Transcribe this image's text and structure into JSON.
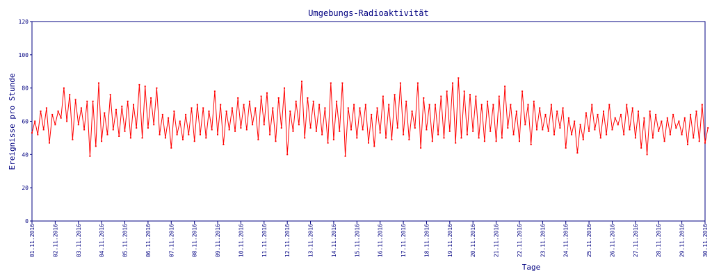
{
  "chart_data": {
    "type": "line",
    "title": "Umgebungs-Radioaktivität",
    "xlabel": "Tage",
    "ylabel": "Ereignisse pro Stunde",
    "ylim": [
      0,
      120
    ],
    "yticks": [
      0,
      20,
      40,
      60,
      80,
      100,
      120
    ],
    "xlim": [
      "01.11.2016",
      "30.11.2016"
    ],
    "xticks": [
      "01.11.2016",
      "02.11.2016",
      "03.11.2016",
      "04.11.2016",
      "05.11.2016",
      "06.11.2016",
      "07.11.2016",
      "08.11.2016",
      "09.11.2016",
      "10.11.2016",
      "11.11.2016",
      "12.11.2016",
      "13.11.2016",
      "14.11.2016",
      "15.11.2016",
      "16.11.2016",
      "17.11.2016",
      "18.11.2016",
      "19.11.2016",
      "20.11.2016",
      "21.11.2016",
      "22.11.2016",
      "23.11.2016",
      "24.11.2016",
      "25.11.2016",
      "26.11.2016",
      "27.11.2016",
      "28.11.2016",
      "29.11.2016",
      "30.11.2016"
    ],
    "grid": false,
    "series": [
      {
        "color": "#ff0000",
        "points": [
          [
            "01.11.2016 00:00",
            53
          ],
          [
            "01.11.2016 03:00",
            60
          ],
          [
            "01.11.2016 06:00",
            52
          ],
          [
            "01.11.2016 09:00",
            66
          ],
          [
            "01.11.2016 12:00",
            55
          ],
          [
            "01.11.2016 15:00",
            68
          ],
          [
            "01.11.2016 18:00",
            47
          ],
          [
            "01.11.2016 21:00",
            64
          ],
          [
            "02.11.2016 00:00",
            58
          ],
          [
            "02.11.2016 03:00",
            66
          ],
          [
            "02.11.2016 06:00",
            62
          ],
          [
            "02.11.2016 09:00",
            80
          ],
          [
            "02.11.2016 12:00",
            60
          ],
          [
            "02.11.2016 15:00",
            76
          ],
          [
            "02.11.2016 18:00",
            49
          ],
          [
            "02.11.2016 21:00",
            73
          ],
          [
            "03.11.2016 00:00",
            58
          ],
          [
            "03.11.2016 03:00",
            68
          ],
          [
            "03.11.2016 06:00",
            55
          ],
          [
            "03.11.2016 09:00",
            72
          ],
          [
            "03.11.2016 12:00",
            39
          ],
          [
            "03.11.2016 15:00",
            72
          ],
          [
            "03.11.2016 18:00",
            45
          ],
          [
            "03.11.2016 21:00",
            83
          ],
          [
            "04.11.2016 00:00",
            48
          ],
          [
            "04.11.2016 03:00",
            65
          ],
          [
            "04.11.2016 06:00",
            52
          ],
          [
            "04.11.2016 09:00",
            76
          ],
          [
            "04.11.2016 12:00",
            55
          ],
          [
            "04.11.2016 15:00",
            67
          ],
          [
            "04.11.2016 18:00",
            51
          ],
          [
            "04.11.2016 21:00",
            69
          ],
          [
            "05.11.2016 00:00",
            54
          ],
          [
            "05.11.2016 03:00",
            72
          ],
          [
            "05.11.2016 06:00",
            50
          ],
          [
            "05.11.2016 09:00",
            70
          ],
          [
            "05.11.2016 12:00",
            56
          ],
          [
            "05.11.2016 15:00",
            82
          ],
          [
            "05.11.2016 18:00",
            50
          ],
          [
            "05.11.2016 21:00",
            81
          ],
          [
            "06.11.2016 00:00",
            56
          ],
          [
            "06.11.2016 03:00",
            74
          ],
          [
            "06.11.2016 06:00",
            58
          ],
          [
            "06.11.2016 09:00",
            80
          ],
          [
            "06.11.2016 12:00",
            52
          ],
          [
            "06.11.2016 15:00",
            64
          ],
          [
            "06.11.2016 18:00",
            50
          ],
          [
            "06.11.2016 21:00",
            62
          ],
          [
            "07.11.2016 00:00",
            44
          ],
          [
            "07.11.2016 03:00",
            66
          ],
          [
            "07.11.2016 06:00",
            52
          ],
          [
            "07.11.2016 09:00",
            60
          ],
          [
            "07.11.2016 12:00",
            49
          ],
          [
            "07.11.2016 15:00",
            64
          ],
          [
            "07.11.2016 18:00",
            52
          ],
          [
            "07.11.2016 21:00",
            68
          ],
          [
            "08.11.2016 00:00",
            48
          ],
          [
            "08.11.2016 03:00",
            70
          ],
          [
            "08.11.2016 06:00",
            52
          ],
          [
            "08.11.2016 09:00",
            68
          ],
          [
            "08.11.2016 12:00",
            50
          ],
          [
            "08.11.2016 15:00",
            66
          ],
          [
            "08.11.2016 18:00",
            55
          ],
          [
            "08.11.2016 21:00",
            78
          ],
          [
            "09.11.2016 00:00",
            52
          ],
          [
            "09.11.2016 03:00",
            70
          ],
          [
            "09.11.2016 06:00",
            46
          ],
          [
            "09.11.2016 09:00",
            66
          ],
          [
            "09.11.2016 12:00",
            55
          ],
          [
            "09.11.2016 15:00",
            68
          ],
          [
            "09.11.2016 18:00",
            54
          ],
          [
            "09.11.2016 21:00",
            74
          ],
          [
            "10.11.2016 00:00",
            56
          ],
          [
            "10.11.2016 03:00",
            70
          ],
          [
            "10.11.2016 06:00",
            55
          ],
          [
            "10.11.2016 09:00",
            72
          ],
          [
            "10.11.2016 12:00",
            58
          ],
          [
            "10.11.2016 15:00",
            68
          ],
          [
            "10.11.2016 18:00",
            49
          ],
          [
            "10.11.2016 21:00",
            75
          ],
          [
            "11.11.2016 00:00",
            58
          ],
          [
            "11.11.2016 03:00",
            77
          ],
          [
            "11.11.2016 06:00",
            52
          ],
          [
            "11.11.2016 09:00",
            68
          ],
          [
            "11.11.2016 12:00",
            48
          ],
          [
            "11.11.2016 15:00",
            74
          ],
          [
            "11.11.2016 18:00",
            56
          ],
          [
            "11.11.2016 21:00",
            80
          ],
          [
            "12.11.2016 00:00",
            40
          ],
          [
            "12.11.2016 03:00",
            66
          ],
          [
            "12.11.2016 06:00",
            54
          ],
          [
            "12.11.2016 09:00",
            72
          ],
          [
            "12.11.2016 12:00",
            58
          ],
          [
            "12.11.2016 15:00",
            84
          ],
          [
            "12.11.2016 18:00",
            50
          ],
          [
            "12.11.2016 21:00",
            74
          ],
          [
            "13.11.2016 00:00",
            56
          ],
          [
            "13.11.2016 03:00",
            72
          ],
          [
            "13.11.2016 06:00",
            54
          ],
          [
            "13.11.2016 09:00",
            70
          ],
          [
            "13.11.2016 12:00",
            52
          ],
          [
            "13.11.2016 15:00",
            68
          ],
          [
            "13.11.2016 18:00",
            47
          ],
          [
            "13.11.2016 21:00",
            83
          ],
          [
            "14.11.2016 00:00",
            49
          ],
          [
            "14.11.2016 03:00",
            72
          ],
          [
            "14.11.2016 06:00",
            54
          ],
          [
            "14.11.2016 09:00",
            83
          ],
          [
            "14.11.2016 12:00",
            39
          ],
          [
            "14.11.2016 15:00",
            68
          ],
          [
            "14.11.2016 18:00",
            55
          ],
          [
            "14.11.2016 21:00",
            70
          ],
          [
            "15.11.2016 00:00",
            50
          ],
          [
            "15.11.2016 03:00",
            68
          ],
          [
            "15.11.2016 06:00",
            55
          ],
          [
            "15.11.2016 09:00",
            70
          ],
          [
            "15.11.2016 12:00",
            47
          ],
          [
            "15.11.2016 15:00",
            64
          ],
          [
            "15.11.2016 18:00",
            45
          ],
          [
            "15.11.2016 21:00",
            68
          ],
          [
            "16.11.2016 00:00",
            53
          ],
          [
            "16.11.2016 03:00",
            75
          ],
          [
            "16.11.2016 06:00",
            50
          ],
          [
            "16.11.2016 09:00",
            70
          ],
          [
            "16.11.2016 12:00",
            49
          ],
          [
            "16.11.2016 15:00",
            76
          ],
          [
            "16.11.2016 18:00",
            56
          ],
          [
            "16.11.2016 21:00",
            83
          ],
          [
            "17.11.2016 00:00",
            52
          ],
          [
            "17.11.2016 03:00",
            72
          ],
          [
            "17.11.2016 06:00",
            49
          ],
          [
            "17.11.2016 09:00",
            66
          ],
          [
            "17.11.2016 12:00",
            56
          ],
          [
            "17.11.2016 15:00",
            83
          ],
          [
            "17.11.2016 18:00",
            44
          ],
          [
            "17.11.2016 21:00",
            74
          ],
          [
            "18.11.2016 00:00",
            55
          ],
          [
            "18.11.2016 03:00",
            70
          ],
          [
            "18.11.2016 06:00",
            48
          ],
          [
            "18.11.2016 09:00",
            70
          ],
          [
            "18.11.2016 12:00",
            52
          ],
          [
            "18.11.2016 15:00",
            75
          ],
          [
            "18.11.2016 18:00",
            50
          ],
          [
            "18.11.2016 21:00",
            78
          ],
          [
            "19.11.2016 00:00",
            54
          ],
          [
            "19.11.2016 03:00",
            83
          ],
          [
            "19.11.2016 06:00",
            47
          ],
          [
            "19.11.2016 09:00",
            86
          ],
          [
            "19.11.2016 12:00",
            50
          ],
          [
            "19.11.2016 15:00",
            78
          ],
          [
            "19.11.2016 18:00",
            52
          ],
          [
            "19.11.2016 21:00",
            76
          ],
          [
            "20.11.2016 00:00",
            54
          ],
          [
            "20.11.2016 03:00",
            75
          ],
          [
            "20.11.2016 06:00",
            50
          ],
          [
            "20.11.2016 09:00",
            70
          ],
          [
            "20.11.2016 12:00",
            48
          ],
          [
            "20.11.2016 15:00",
            72
          ],
          [
            "20.11.2016 18:00",
            54
          ],
          [
            "20.11.2016 21:00",
            70
          ],
          [
            "21.11.2016 00:00",
            48
          ],
          [
            "21.11.2016 03:00",
            75
          ],
          [
            "21.11.2016 06:00",
            50
          ],
          [
            "21.11.2016 09:00",
            81
          ],
          [
            "21.11.2016 12:00",
            56
          ],
          [
            "21.11.2016 15:00",
            70
          ],
          [
            "21.11.2016 18:00",
            52
          ],
          [
            "21.11.2016 21:00",
            66
          ],
          [
            "22.11.2016 00:00",
            48
          ],
          [
            "22.11.2016 03:00",
            78
          ],
          [
            "22.11.2016 06:00",
            58
          ],
          [
            "22.11.2016 09:00",
            70
          ],
          [
            "22.11.2016 12:00",
            46
          ],
          [
            "22.11.2016 15:00",
            72
          ],
          [
            "22.11.2016 18:00",
            55
          ],
          [
            "22.11.2016 21:00",
            68
          ],
          [
            "23.11.2016 00:00",
            55
          ],
          [
            "23.11.2016 03:00",
            64
          ],
          [
            "23.11.2016 06:00",
            54
          ],
          [
            "23.11.2016 09:00",
            70
          ],
          [
            "23.11.2016 12:00",
            52
          ],
          [
            "23.11.2016 15:00",
            66
          ],
          [
            "23.11.2016 18:00",
            56
          ],
          [
            "23.11.2016 21:00",
            68
          ],
          [
            "24.11.2016 00:00",
            44
          ],
          [
            "24.11.2016 03:00",
            62
          ],
          [
            "24.11.2016 06:00",
            52
          ],
          [
            "24.11.2016 09:00",
            60
          ],
          [
            "24.11.2016 12:00",
            41
          ],
          [
            "24.11.2016 15:00",
            58
          ],
          [
            "24.11.2016 18:00",
            49
          ],
          [
            "24.11.2016 21:00",
            65
          ],
          [
            "25.11.2016 00:00",
            54
          ],
          [
            "25.11.2016 03:00",
            70
          ],
          [
            "25.11.2016 06:00",
            55
          ],
          [
            "25.11.2016 09:00",
            64
          ],
          [
            "25.11.2016 12:00",
            50
          ],
          [
            "25.11.2016 15:00",
            66
          ],
          [
            "25.11.2016 18:00",
            52
          ],
          [
            "25.11.2016 21:00",
            70
          ],
          [
            "26.11.2016 00:00",
            55
          ],
          [
            "26.11.2016 03:00",
            62
          ],
          [
            "26.11.2016 06:00",
            58
          ],
          [
            "26.11.2016 09:00",
            64
          ],
          [
            "26.11.2016 12:00",
            52
          ],
          [
            "26.11.2016 15:00",
            70
          ],
          [
            "26.11.2016 18:00",
            55
          ],
          [
            "26.11.2016 21:00",
            68
          ],
          [
            "27.11.2016 00:00",
            50
          ],
          [
            "27.11.2016 03:00",
            66
          ],
          [
            "27.11.2016 06:00",
            44
          ],
          [
            "27.11.2016 09:00",
            62
          ],
          [
            "27.11.2016 12:00",
            40
          ],
          [
            "27.11.2016 15:00",
            66
          ],
          [
            "27.11.2016 18:00",
            50
          ],
          [
            "27.11.2016 21:00",
            64
          ],
          [
            "28.11.2016 00:00",
            54
          ],
          [
            "28.11.2016 03:00",
            60
          ],
          [
            "28.11.2016 06:00",
            48
          ],
          [
            "28.11.2016 09:00",
            62
          ],
          [
            "28.11.2016 12:00",
            52
          ],
          [
            "28.11.2016 15:00",
            64
          ],
          [
            "28.11.2016 18:00",
            56
          ],
          [
            "28.11.2016 21:00",
            60
          ],
          [
            "29.11.2016 00:00",
            52
          ],
          [
            "29.11.2016 03:00",
            62
          ],
          [
            "29.11.2016 06:00",
            46
          ],
          [
            "29.11.2016 09:00",
            64
          ],
          [
            "29.11.2016 12:00",
            50
          ],
          [
            "29.11.2016 15:00",
            66
          ],
          [
            "29.11.2016 18:00",
            48
          ],
          [
            "29.11.2016 21:00",
            70
          ],
          [
            "30.11.2016 00:00",
            47
          ],
          [
            "30.11.2016 03:00",
            56
          ]
        ]
      }
    ]
  }
}
